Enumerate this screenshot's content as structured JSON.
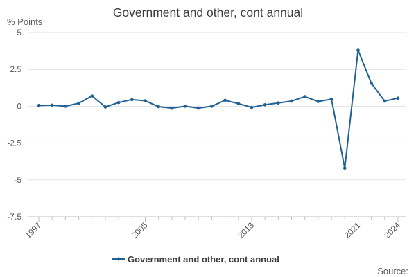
{
  "chart_data": {
    "type": "line",
    "title": "Government and other, cont annual",
    "ylabel": "% Points",
    "xlabel": "",
    "ylim": [
      -7.5,
      5
    ],
    "yticks": [
      5,
      2.5,
      0,
      -2.5,
      -5,
      -7.5
    ],
    "ytick_labels": [
      "5",
      "2.5",
      "0",
      "-2.5",
      "-5",
      "-7.5"
    ],
    "xticks_labeled": [
      1997,
      2005,
      2013,
      2021,
      2024
    ],
    "grid": true,
    "legend_position": "bottom",
    "x": [
      1997,
      1998,
      1999,
      2000,
      2001,
      2002,
      2003,
      2004,
      2005,
      2006,
      2007,
      2008,
      2009,
      2010,
      2011,
      2012,
      2013,
      2014,
      2015,
      2016,
      2017,
      2018,
      2019,
      2020,
      2021,
      2022,
      2023,
      2024
    ],
    "series": [
      {
        "name": "Government and other, cont annual",
        "color": "#206095",
        "values": [
          0.05,
          0.07,
          0.0,
          0.2,
          0.7,
          -0.05,
          0.25,
          0.45,
          0.37,
          -0.03,
          -0.13,
          0.0,
          -0.13,
          0.0,
          0.4,
          0.18,
          -0.08,
          0.1,
          0.22,
          0.35,
          0.65,
          0.32,
          0.48,
          -4.2,
          3.8,
          1.55,
          0.35,
          0.55
        ]
      }
    ],
    "source_label": "Source:"
  }
}
